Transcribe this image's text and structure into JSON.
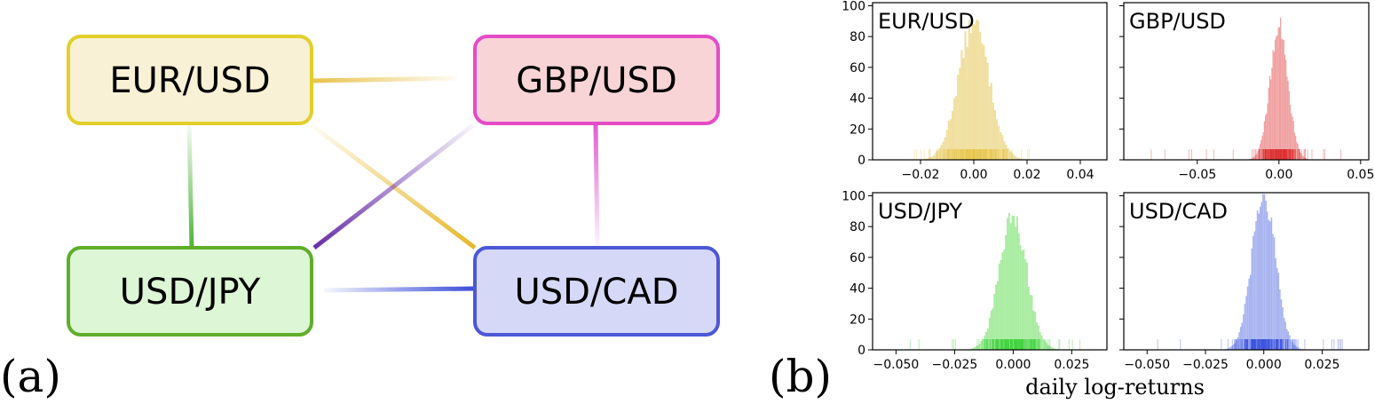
{
  "panel_a": {
    "tag": "(a)",
    "nodes": [
      {
        "id": "eur",
        "label": "EUR/USD",
        "fill": "#f8f1d5",
        "stroke": "#e2cf2a"
      },
      {
        "id": "gbp",
        "label": "GBP/USD",
        "fill": "#f8d4d6",
        "stroke": "#e44cc7"
      },
      {
        "id": "jpy",
        "label": "USD/JPY",
        "fill": "#dcf6d6",
        "stroke": "#5fae2a"
      },
      {
        "id": "cad",
        "label": "USD/CAD",
        "fill": "#d6d8f8",
        "stroke": "#4c58d6"
      }
    ],
    "edges": [
      {
        "from": "eur",
        "to": "gbp",
        "color": "#e8c24a",
        "strong_end": "from"
      },
      {
        "from": "eur",
        "to": "jpy",
        "color": "#4fb33a",
        "strong_end": "to"
      },
      {
        "from": "eur",
        "to": "cad",
        "color": "#e8b82a",
        "strong_end": "to"
      },
      {
        "from": "gbp",
        "to": "jpy",
        "color": "#6a2fa8",
        "strong_end": "to"
      },
      {
        "from": "gbp",
        "to": "cad",
        "color": "#e05ccf",
        "strong_end": "from"
      },
      {
        "from": "jpy",
        "to": "cad",
        "color": "#3a4ed8",
        "strong_end": "to"
      }
    ]
  },
  "panel_b": {
    "tag": "(b)",
    "xlabel": "daily log-returns"
  },
  "chart_data": [
    {
      "type": "bar",
      "title": "EUR/USD",
      "color": "#e8c547",
      "bar_color": "#f0dfa0",
      "xlim": [
        -0.038,
        0.05
      ],
      "ylim": [
        0,
        102
      ],
      "xticks": [
        -0.02,
        0.0,
        0.02,
        0.04
      ],
      "xtick_labels": [
        "−0.02",
        "0.00",
        "0.02",
        "0.04"
      ],
      "yticks": [
        0,
        20,
        40,
        60,
        80,
        100
      ],
      "ytick_labels": [
        "0",
        "20",
        "40",
        "60",
        "80",
        "100"
      ],
      "peak": 88,
      "mean": 0.0,
      "sd": 0.0058,
      "rug_range": [
        -0.026,
        0.028
      ]
    },
    {
      "type": "bar",
      "title": "GBP/USD",
      "color": "#dd3030",
      "bar_color": "#f0a0a0",
      "xlim": [
        -0.095,
        0.055
      ],
      "ylim": [
        0,
        102
      ],
      "xticks": [
        -0.05,
        0.0,
        0.05
      ],
      "xtick_labels": [
        "−0.05",
        "0.00",
        "0.05"
      ],
      "yticks": [
        0,
        20,
        40,
        60,
        80,
        100
      ],
      "ytick_labels": [
        "",
        "",
        "",
        "",
        "",
        ""
      ],
      "peak": 86,
      "mean": 0.0,
      "sd": 0.0055,
      "rug_range": [
        -0.082,
        0.045
      ]
    },
    {
      "type": "bar",
      "title": "USD/JPY",
      "color": "#3ad03a",
      "bar_color": "#a8eca0",
      "xlim": [
        -0.06,
        0.04
      ],
      "ylim": [
        0,
        102
      ],
      "xticks": [
        -0.05,
        -0.025,
        0.0,
        0.025
      ],
      "xtick_labels": [
        "−0.050",
        "−0.025",
        "0.000",
        "0.025"
      ],
      "yticks": [
        0,
        20,
        40,
        60,
        80,
        100
      ],
      "ytick_labels": [
        "0",
        "20",
        "40",
        "60",
        "80",
        "100"
      ],
      "peak": 87,
      "mean": 0.0,
      "sd": 0.0058,
      "rug_range": [
        -0.045,
        0.035
      ]
    },
    {
      "type": "bar",
      "title": "USD/CAD",
      "color": "#3a50e0",
      "bar_color": "#a8b4f0",
      "xlim": [
        -0.06,
        0.045
      ],
      "ylim": [
        0,
        102
      ],
      "xticks": [
        -0.05,
        -0.025,
        0.0,
        0.025
      ],
      "xtick_labels": [
        "−0.050",
        "−0.025",
        "0.000",
        "0.025"
      ],
      "yticks": [
        0,
        20,
        40,
        60,
        80,
        100
      ],
      "ytick_labels": [
        "",
        "",
        "",
        "",
        "",
        ""
      ],
      "peak": 101,
      "mean": 0.0,
      "sd": 0.005,
      "rug_range": [
        -0.05,
        0.04
      ]
    }
  ]
}
